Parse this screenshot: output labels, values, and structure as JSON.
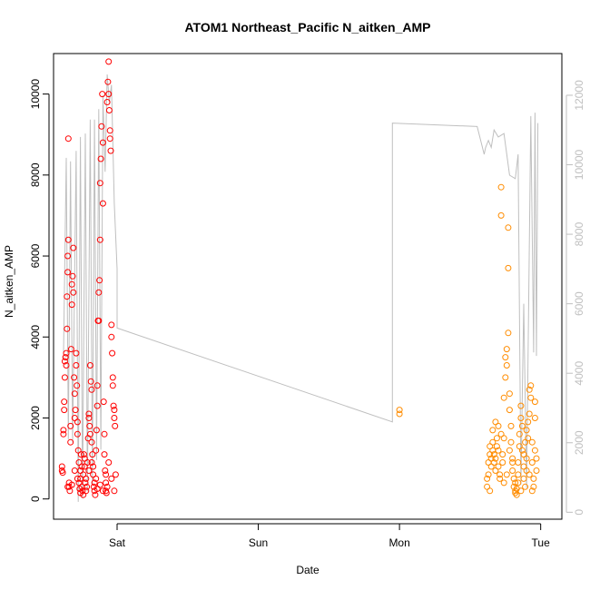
{
  "chart_data": {
    "type": "scatter",
    "title": "ATOM1 Northeast_Pacific N_aitken_AMP",
    "xlabel": "Date",
    "ylabel": "N_aitken_AMP",
    "x_ticks": [
      "Sat",
      "Sun",
      "Mon",
      "Tue"
    ],
    "x_range_days": [
      -0.45,
      3.15
    ],
    "ylim_left": [
      -500,
      11000
    ],
    "ylim_right": [
      -200,
      13200
    ],
    "yticks_left": [
      0,
      2000,
      4000,
      6000,
      8000,
      10000
    ],
    "yticks_right": [
      0,
      2000,
      4000,
      6000,
      8000,
      10000,
      12000
    ],
    "grid": false,
    "legend": "none",
    "colors": {
      "series_1": "#ff0000",
      "series_2": "#ff8c00",
      "right_axis_line": "#bfbfbf",
      "axis": "#000000"
    },
    "line_series": {
      "axis": "right",
      "points": [
        [
          -0.38,
          4400
        ],
        [
          -0.36,
          10200
        ],
        [
          -0.345,
          2100
        ],
        [
          -0.33,
          10100
        ],
        [
          -0.315,
          2000
        ],
        [
          -0.29,
          10400
        ],
        [
          -0.275,
          300
        ],
        [
          -0.26,
          10800
        ],
        [
          -0.245,
          400
        ],
        [
          -0.225,
          10900
        ],
        [
          -0.21,
          600
        ],
        [
          -0.19,
          11300
        ],
        [
          -0.175,
          800
        ],
        [
          -0.16,
          11300
        ],
        [
          -0.145,
          1500
        ],
        [
          -0.13,
          11600
        ],
        [
          -0.115,
          1800
        ],
        [
          -0.1,
          12000
        ],
        [
          -0.085,
          9800
        ],
        [
          -0.07,
          12600
        ],
        [
          -0.055,
          11800
        ],
        [
          -0.04,
          12300
        ],
        [
          -0.02,
          8900
        ],
        [
          0.0,
          7000
        ],
        [
          0.0,
          5300
        ],
        [
          1.95,
          2600
        ],
        [
          1.95,
          11200
        ],
        [
          2.55,
          11100
        ],
        [
          2.6,
          10300
        ],
        [
          2.61,
          10500
        ],
        [
          2.63,
          10700
        ],
        [
          2.65,
          10500
        ],
        [
          2.67,
          11000
        ],
        [
          2.7,
          10800
        ],
        [
          2.74,
          10900
        ],
        [
          2.78,
          9700
        ],
        [
          2.82,
          9600
        ],
        [
          2.84,
          10300
        ],
        [
          2.86,
          800
        ],
        [
          2.88,
          6000
        ],
        [
          2.9,
          700
        ],
        [
          2.93,
          11400
        ],
        [
          2.95,
          4600
        ],
        [
          2.96,
          11500
        ],
        [
          2.97,
          4500
        ],
        [
          2.98,
          11200
        ]
      ]
    },
    "series": [
      {
        "color": "#ff0000",
        "points": [
          [
            -0.39,
            700
          ],
          [
            -0.39,
            800
          ],
          [
            -0.385,
            650
          ],
          [
            -0.38,
            1600
          ],
          [
            -0.38,
            1700
          ],
          [
            -0.375,
            2400
          ],
          [
            -0.375,
            2200
          ],
          [
            -0.37,
            3000
          ],
          [
            -0.37,
            3400
          ],
          [
            -0.365,
            3500
          ],
          [
            -0.36,
            3300
          ],
          [
            -0.36,
            3600
          ],
          [
            -0.355,
            4200
          ],
          [
            -0.355,
            5000
          ],
          [
            -0.35,
            5600
          ],
          [
            -0.35,
            6000
          ],
          [
            -0.345,
            6400
          ],
          [
            -0.345,
            8900
          ],
          [
            -0.34,
            300
          ],
          [
            -0.34,
            400
          ],
          [
            -0.335,
            200
          ],
          [
            -0.33,
            1800
          ],
          [
            -0.33,
            1400
          ],
          [
            -0.325,
            3700
          ],
          [
            -0.32,
            4800
          ],
          [
            -0.32,
            5300
          ],
          [
            -0.315,
            5500
          ],
          [
            -0.31,
            6200
          ],
          [
            -0.31,
            5100
          ],
          [
            -0.305,
            3000
          ],
          [
            -0.3,
            2600
          ],
          [
            -0.3,
            2000
          ],
          [
            -0.295,
            2200
          ],
          [
            -0.29,
            3600
          ],
          [
            -0.29,
            3300
          ],
          [
            -0.285,
            2800
          ],
          [
            -0.28,
            1900
          ],
          [
            -0.28,
            1600
          ],
          [
            -0.275,
            1200
          ],
          [
            -0.27,
            900
          ],
          [
            -0.27,
            400
          ],
          [
            -0.265,
            250
          ],
          [
            -0.26,
            500
          ],
          [
            -0.26,
            700
          ],
          [
            -0.255,
            1100
          ],
          [
            -0.25,
            800
          ],
          [
            -0.25,
            300
          ],
          [
            -0.245,
            200
          ],
          [
            -0.24,
            100
          ],
          [
            -0.24,
            600
          ],
          [
            -0.235,
            1100
          ],
          [
            -0.23,
            1000
          ],
          [
            -0.23,
            800
          ],
          [
            -0.225,
            400
          ],
          [
            -0.22,
            200
          ],
          [
            -0.215,
            300
          ],
          [
            -0.21,
            900
          ],
          [
            -0.205,
            1500
          ],
          [
            -0.2,
            2100
          ],
          [
            -0.2,
            2000
          ],
          [
            -0.195,
            1800
          ],
          [
            -0.19,
            1600
          ],
          [
            -0.19,
            3300
          ],
          [
            -0.185,
            2900
          ],
          [
            -0.18,
            2700
          ],
          [
            -0.18,
            1400
          ],
          [
            -0.175,
            1100
          ],
          [
            -0.17,
            800
          ],
          [
            -0.17,
            600
          ],
          [
            -0.165,
            300
          ],
          [
            -0.16,
            200
          ],
          [
            -0.155,
            100
          ],
          [
            -0.15,
            500
          ],
          [
            -0.15,
            1200
          ],
          [
            -0.145,
            1700
          ],
          [
            -0.14,
            2300
          ],
          [
            -0.14,
            2800
          ],
          [
            -0.135,
            4400
          ],
          [
            -0.13,
            4400
          ],
          [
            -0.13,
            5100
          ],
          [
            -0.125,
            5400
          ],
          [
            -0.12,
            6400
          ],
          [
            -0.12,
            7800
          ],
          [
            -0.115,
            8400
          ],
          [
            -0.11,
            9200
          ],
          [
            -0.105,
            10000
          ],
          [
            -0.1,
            8800
          ],
          [
            -0.1,
            7300
          ],
          [
            -0.095,
            2400
          ],
          [
            -0.09,
            1600
          ],
          [
            -0.09,
            1100
          ],
          [
            -0.085,
            700
          ],
          [
            -0.08,
            400
          ],
          [
            -0.08,
            200
          ],
          [
            -0.075,
            150
          ],
          [
            -0.07,
            300
          ],
          [
            -0.07,
            9800
          ],
          [
            -0.065,
            10300
          ],
          [
            -0.06,
            10800
          ],
          [
            -0.06,
            10000
          ],
          [
            -0.055,
            9600
          ],
          [
            -0.05,
            9100
          ],
          [
            -0.05,
            8900
          ],
          [
            -0.045,
            8600
          ],
          [
            -0.04,
            4300
          ],
          [
            -0.04,
            4000
          ],
          [
            -0.035,
            3600
          ],
          [
            -0.03,
            3000
          ],
          [
            -0.03,
            2800
          ],
          [
            -0.025,
            2300
          ],
          [
            -0.02,
            2200
          ],
          [
            -0.02,
            2000
          ],
          [
            -0.015,
            1800
          ],
          [
            -0.01,
            600
          ],
          [
            -0.35,
            300
          ],
          [
            -0.32,
            350
          ],
          [
            -0.3,
            700
          ],
          [
            -0.28,
            500
          ],
          [
            -0.26,
            150
          ],
          [
            -0.22,
            500
          ],
          [
            -0.2,
            700
          ],
          [
            -0.18,
            900
          ],
          [
            -0.16,
            400
          ],
          [
            -0.14,
            250
          ],
          [
            -0.12,
            350
          ],
          [
            -0.1,
            200
          ],
          [
            -0.08,
            600
          ],
          [
            -0.06,
            900
          ],
          [
            -0.04,
            500
          ],
          [
            -0.02,
            200
          ]
        ]
      },
      {
        "color": "#ff8c00",
        "points": [
          [
            2.0,
            2100
          ],
          [
            2.0,
            2200
          ],
          [
            2.62,
            300
          ],
          [
            2.62,
            500
          ],
          [
            2.63,
            600
          ],
          [
            2.63,
            900
          ],
          [
            2.64,
            1100
          ],
          [
            2.64,
            1300
          ],
          [
            2.65,
            1000
          ],
          [
            2.65,
            800
          ],
          [
            2.66,
            1200
          ],
          [
            2.66,
            1400
          ],
          [
            2.67,
            1100
          ],
          [
            2.67,
            900
          ],
          [
            2.68,
            700
          ],
          [
            2.68,
            1000
          ],
          [
            2.69,
            1300
          ],
          [
            2.69,
            1500
          ],
          [
            2.7,
            1200
          ],
          [
            2.7,
            800
          ],
          [
            2.71,
            600
          ],
          [
            2.71,
            500
          ],
          [
            2.72,
            7700
          ],
          [
            2.72,
            7000
          ],
          [
            2.73,
            1100
          ],
          [
            2.73,
            900
          ],
          [
            2.74,
            1500
          ],
          [
            2.74,
            2500
          ],
          [
            2.75,
            3000
          ],
          [
            2.75,
            3500
          ],
          [
            2.76,
            3700
          ],
          [
            2.76,
            3300
          ],
          [
            2.77,
            4100
          ],
          [
            2.77,
            6700
          ],
          [
            2.77,
            5700
          ],
          [
            2.78,
            2600
          ],
          [
            2.78,
            2200
          ],
          [
            2.79,
            1800
          ],
          [
            2.79,
            1400
          ],
          [
            2.8,
            1000
          ],
          [
            2.8,
            700
          ],
          [
            2.81,
            500
          ],
          [
            2.81,
            300
          ],
          [
            2.82,
            200
          ],
          [
            2.82,
            150
          ],
          [
            2.83,
            100
          ],
          [
            2.83,
            250
          ],
          [
            2.84,
            400
          ],
          [
            2.84,
            900
          ],
          [
            2.85,
            1300
          ],
          [
            2.85,
            1600
          ],
          [
            2.86,
            2000
          ],
          [
            2.86,
            2300
          ],
          [
            2.87,
            1800
          ],
          [
            2.87,
            1200
          ],
          [
            2.88,
            800
          ],
          [
            2.88,
            500
          ],
          [
            2.89,
            300
          ],
          [
            2.89,
            1400
          ],
          [
            2.9,
            1000
          ],
          [
            2.9,
            700
          ],
          [
            2.91,
            1900
          ],
          [
            2.91,
            1500
          ],
          [
            2.92,
            2100
          ],
          [
            2.92,
            2700
          ],
          [
            2.93,
            2800
          ],
          [
            2.93,
            2500
          ],
          [
            2.94,
            1400
          ],
          [
            2.94,
            900
          ],
          [
            2.95,
            500
          ],
          [
            2.95,
            300
          ],
          [
            2.96,
            2000
          ],
          [
            2.96,
            2400
          ],
          [
            2.97,
            700
          ],
          [
            2.97,
            1000
          ],
          [
            2.64,
            200
          ],
          [
            2.66,
            1700
          ],
          [
            2.68,
            1900
          ],
          [
            2.7,
            1800
          ],
          [
            2.72,
            1600
          ],
          [
            2.74,
            400
          ],
          [
            2.76,
            600
          ],
          [
            2.78,
            1200
          ],
          [
            2.8,
            900
          ],
          [
            2.82,
            400
          ],
          [
            2.84,
            600
          ],
          [
            2.86,
            200
          ],
          [
            2.88,
            1100
          ],
          [
            2.9,
            1700
          ],
          [
            2.92,
            600
          ],
          [
            2.94,
            200
          ],
          [
            2.96,
            1200
          ]
        ]
      }
    ]
  }
}
